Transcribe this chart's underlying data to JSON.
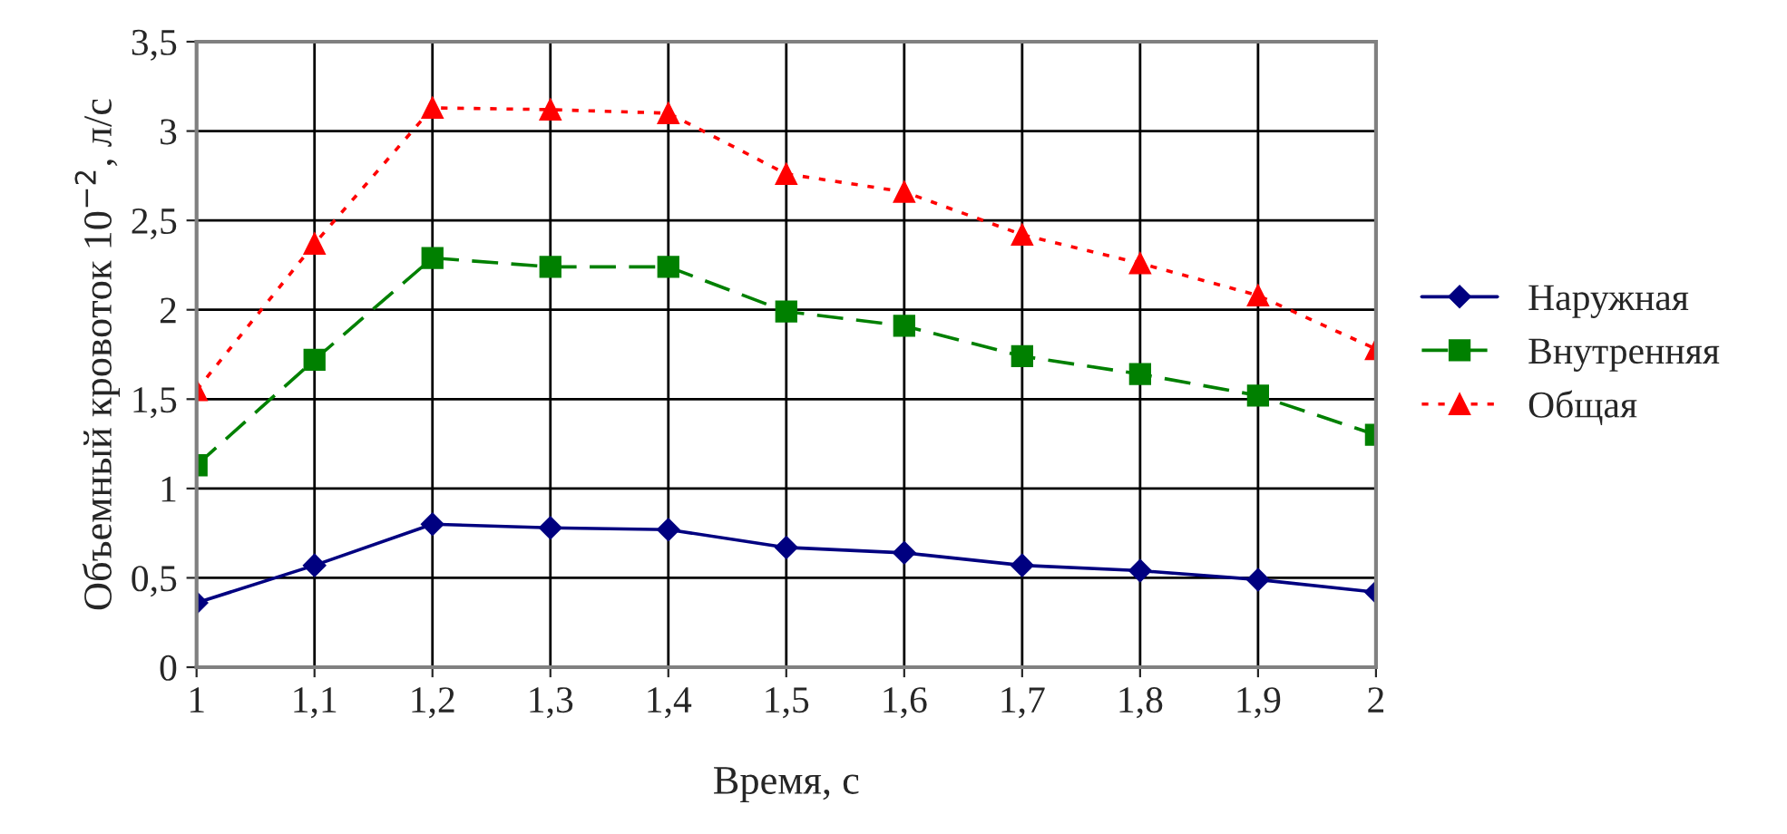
{
  "chart_data": {
    "type": "line",
    "xlabel": "Время, с",
    "ylabel": "Объемный кровоток 10$^{−2}$, л/с",
    "categories": [
      "1",
      "1,1",
      "1,2",
      "1,3",
      "1,4",
      "1,5",
      "1,6",
      "1,7",
      "1,8",
      "1,9",
      "2"
    ],
    "series": [
      {
        "name": "Наружная",
        "color": "#000080",
        "marker": "diamond",
        "line_style": "solid",
        "values": [
          0.36,
          0.57,
          0.8,
          0.78,
          0.77,
          0.67,
          0.64,
          0.57,
          0.54,
          0.49,
          0.42
        ]
      },
      {
        "name": "Внутренняя",
        "color": "#008000",
        "marker": "square",
        "line_style": "dashed",
        "values": [
          1.13,
          1.72,
          2.29,
          2.24,
          2.24,
          1.99,
          1.91,
          1.74,
          1.64,
          1.52,
          1.3
        ]
      },
      {
        "name": "Общая",
        "color": "#ff0000",
        "marker": "triangle",
        "line_style": "dotted",
        "values": [
          1.55,
          2.37,
          3.13,
          3.12,
          3.1,
          2.76,
          2.66,
          2.42,
          2.26,
          2.08,
          1.78
        ]
      }
    ],
    "ylim": [
      0,
      3.5
    ],
    "yticks": [
      0,
      {
        "value": 0.5,
        "label": "0,5"
      },
      1,
      {
        "value": 1.5,
        "label": "1,5"
      },
      2,
      {
        "value": 2.5,
        "label": "2,5"
      },
      3,
      {
        "value": 3.5,
        "label": "3,5"
      }
    ],
    "grid": true,
    "legend": "right"
  }
}
